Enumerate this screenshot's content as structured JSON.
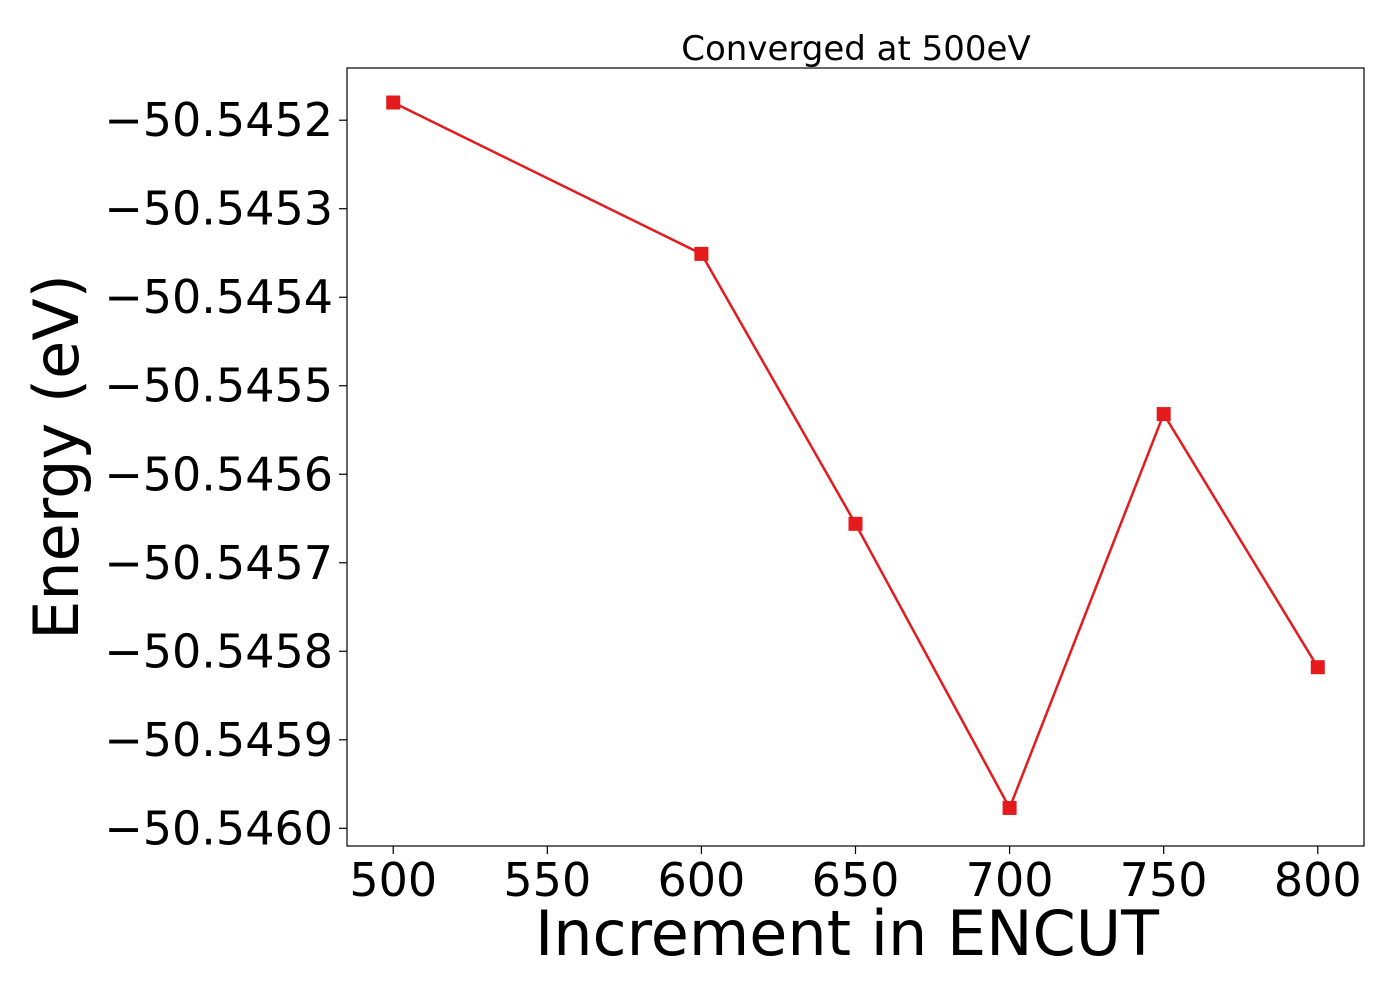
{
  "chart_data": {
    "type": "line",
    "title": "Converged at 500eV",
    "xlabel": "Increment in ENCUT",
    "ylabel": "Energy (eV)",
    "x": [
      500,
      600,
      650,
      700,
      750,
      800
    ],
    "series": [
      {
        "values": [
          -50.54518,
          -50.545351,
          -50.545656,
          -50.545977,
          -50.545532,
          -50.545818
        ],
        "color": "#e41a1c",
        "marker": "square"
      }
    ],
    "xlim": [
      485,
      815
    ],
    "ylim": [
      -50.54602,
      -50.545141
    ],
    "xticks": [
      500,
      550,
      600,
      650,
      700,
      750,
      800
    ],
    "xtick_labels": [
      "500",
      "550",
      "600",
      "650",
      "700",
      "750",
      "800"
    ],
    "yticks": [
      -50.5452,
      -50.5453,
      -50.5454,
      -50.5455,
      -50.5456,
      -50.5457,
      -50.5458,
      -50.5459,
      -50.546
    ],
    "ytick_labels": [
      "−50.5452",
      "−50.5453",
      "−50.5454",
      "−50.5455",
      "−50.5456",
      "−50.5457",
      "−50.5458",
      "−50.5459",
      "−50.5460"
    ],
    "grid": false,
    "legend": "none"
  }
}
